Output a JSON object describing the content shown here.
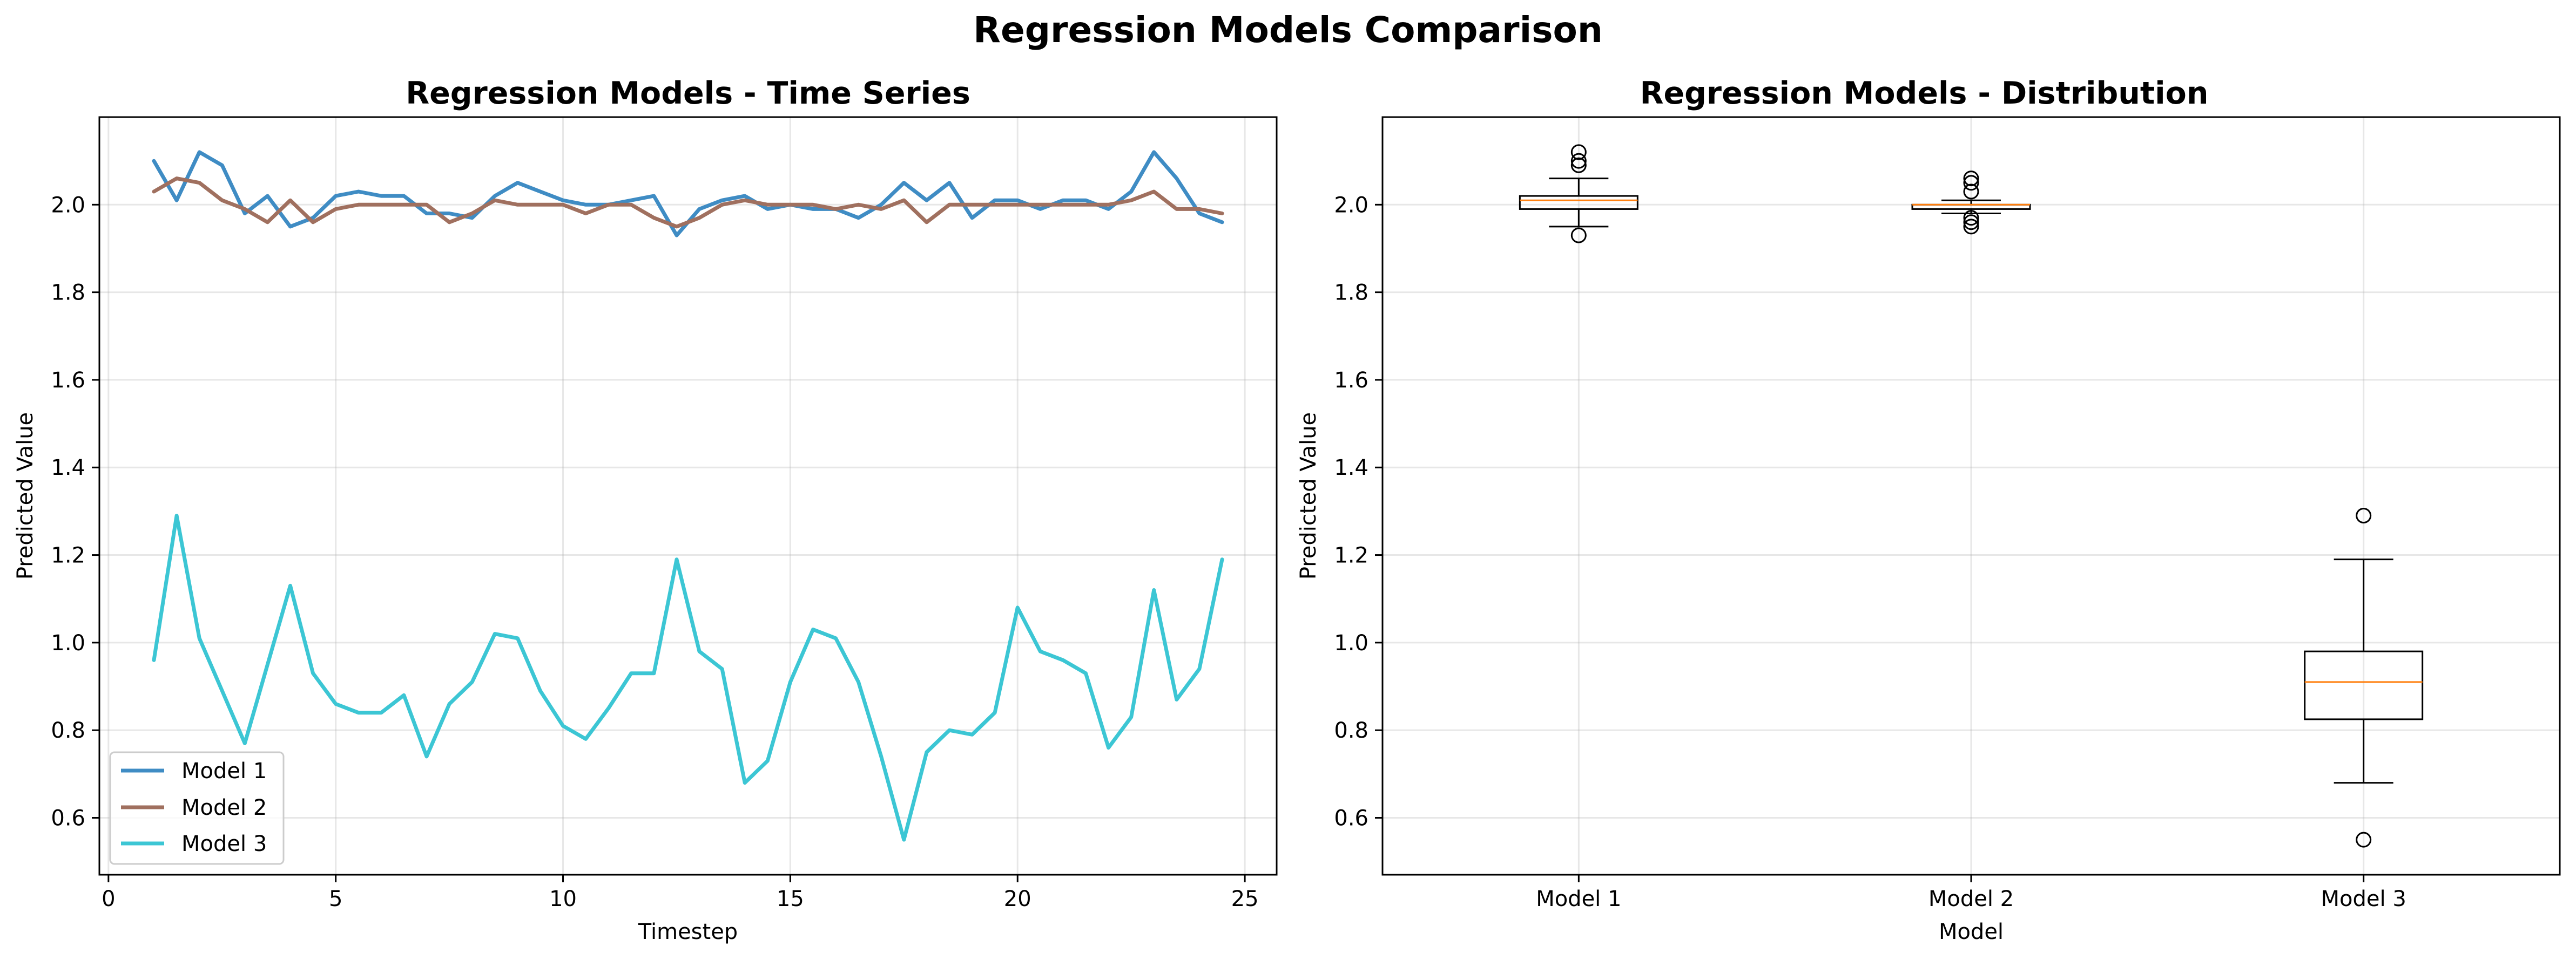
{
  "figure_title": "Regression Models Comparison",
  "colors": {
    "model1": "#3f8cc4",
    "model2": "#a0705f",
    "model3": "#3cc6d4",
    "median": "#ff7f0e",
    "grid": "#b0b0b0"
  },
  "chart_data": [
    {
      "type": "line",
      "title": "Regression Models - Time Series",
      "xlabel": "Timestep",
      "ylabel": "Predicted Value",
      "xlim": [
        -0.2,
        25.7
      ],
      "ylim": [
        0.47,
        2.2
      ],
      "xticks": [
        0,
        5,
        10,
        15,
        20,
        25
      ],
      "yticks": [
        0.6,
        0.8,
        1.0,
        1.2,
        1.4,
        1.6,
        1.8,
        2.0
      ],
      "grid": true,
      "legend_position": "lower-left",
      "x": [
        1.0,
        1.5,
        2.0,
        2.5,
        3.0,
        3.5,
        4.0,
        4.5,
        5.0,
        5.5,
        6.0,
        6.5,
        7.0,
        7.5,
        8.0,
        8.5,
        9.0,
        9.5,
        10.0,
        10.5,
        11.0,
        11.5,
        12.0,
        12.5,
        13.0,
        13.5,
        14.0,
        14.5,
        15.0,
        15.5,
        16.0,
        16.5,
        17.0,
        17.5,
        18.0,
        18.5,
        19.0,
        19.5,
        20.0,
        20.5,
        21.0,
        21.5,
        22.0,
        22.5,
        23.0,
        23.5,
        24.0,
        24.5
      ],
      "series": [
        {
          "name": "Model 1",
          "color_key": "model1",
          "values": [
            2.1,
            2.01,
            2.12,
            2.09,
            1.98,
            2.02,
            1.95,
            1.97,
            2.02,
            2.03,
            2.02,
            2.02,
            1.98,
            1.98,
            1.97,
            2.02,
            2.05,
            2.03,
            2.01,
            2.0,
            2.0,
            2.01,
            2.02,
            1.93,
            1.99,
            2.01,
            2.02,
            1.99,
            2.0,
            1.99,
            1.99,
            1.97,
            2.0,
            2.05,
            2.01,
            2.05,
            1.97,
            2.01,
            2.01,
            1.99,
            2.01,
            2.01,
            1.99,
            2.03,
            2.12,
            2.06,
            1.98,
            1.96
          ]
        },
        {
          "name": "Model 2",
          "color_key": "model2",
          "values": [
            2.03,
            2.06,
            2.05,
            2.01,
            1.99,
            1.96,
            2.01,
            1.96,
            1.99,
            2.0,
            2.0,
            2.0,
            2.0,
            1.96,
            1.98,
            2.01,
            2.0,
            2.0,
            2.0,
            1.98,
            2.0,
            2.0,
            1.97,
            1.95,
            1.97,
            2.0,
            2.01,
            2.0,
            2.0,
            2.0,
            1.99,
            2.0,
            1.99,
            2.01,
            1.96,
            2.0,
            2.0,
            2.0,
            2.0,
            2.0,
            2.0,
            2.0,
            2.0,
            2.01,
            2.03,
            1.99,
            1.99,
            1.98
          ]
        },
        {
          "name": "Model 3",
          "color_key": "model3",
          "values": [
            0.96,
            1.29,
            1.01,
            0.89,
            0.77,
            0.95,
            1.13,
            0.93,
            0.86,
            0.84,
            0.84,
            0.88,
            0.74,
            0.86,
            0.91,
            1.02,
            1.01,
            0.89,
            0.81,
            0.78,
            0.85,
            0.93,
            0.93,
            1.19,
            0.98,
            0.94,
            0.68,
            0.73,
            0.91,
            1.03,
            1.01,
            0.91,
            0.74,
            0.55,
            0.75,
            0.8,
            0.79,
            0.84,
            1.08,
            0.98,
            0.96,
            0.93,
            0.76,
            0.83,
            1.12,
            0.87,
            0.94,
            1.19
          ]
        }
      ]
    },
    {
      "type": "box",
      "title": "Regression Models - Distribution",
      "xlabel": "Model",
      "ylabel": "Predicted Value",
      "ylim": [
        0.47,
        2.2
      ],
      "yticks": [
        0.6,
        0.8,
        1.0,
        1.2,
        1.4,
        1.6,
        1.8,
        2.0
      ],
      "grid": true,
      "categories": [
        "Model 1",
        "Model 2",
        "Model 3"
      ],
      "boxes": [
        {
          "whisker_low": 1.95,
          "q1": 1.99,
          "median": 2.01,
          "q3": 2.02,
          "whisker_high": 2.06,
          "outliers": [
            1.93,
            2.09,
            2.1,
            2.12
          ]
        },
        {
          "whisker_low": 1.98,
          "q1": 1.99,
          "median": 2.0,
          "q3": 2.0,
          "whisker_high": 2.01,
          "outliers": [
            1.95,
            1.96,
            1.97,
            2.03,
            2.05,
            2.06
          ]
        },
        {
          "whisker_low": 0.68,
          "q1": 0.825,
          "median": 0.91,
          "q3": 0.98,
          "whisker_high": 1.19,
          "outliers": [
            0.55,
            1.29
          ]
        }
      ]
    }
  ]
}
